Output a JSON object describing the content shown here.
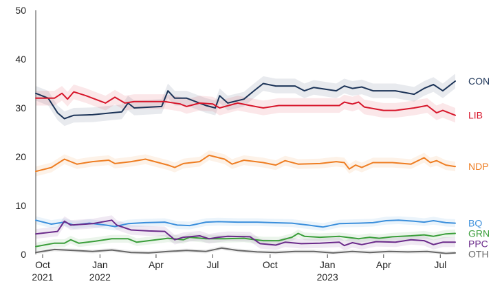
{
  "chart_data": {
    "type": "line",
    "ylim": [
      0,
      50
    ],
    "yticks": [
      0,
      10,
      20,
      30,
      40,
      50
    ],
    "xlim": [
      "2021-09-20",
      "2023-08-05"
    ],
    "xticks": [
      {
        "date": "2021-10-01",
        "label": "Oct",
        "year": "2021"
      },
      {
        "date": "2022-01-01",
        "label": "Jan",
        "year": "2022"
      },
      {
        "date": "2022-04-01",
        "label": "Apr",
        "year": ""
      },
      {
        "date": "2022-07-01",
        "label": "Jul",
        "year": ""
      },
      {
        "date": "2022-10-01",
        "label": "Oct",
        "year": ""
      },
      {
        "date": "2023-01-01",
        "label": "Jan",
        "year": "2023"
      },
      {
        "date": "2023-04-01",
        "label": "Apr",
        "year": ""
      },
      {
        "date": "2023-07-01",
        "label": "Jul",
        "year": ""
      }
    ],
    "series": [
      {
        "name": "CON",
        "color": "#1b3357",
        "band": 1.5,
        "points": [
          [
            "2021-09-20",
            33.0
          ],
          [
            "2021-10-10",
            32.0
          ],
          [
            "2021-10-25",
            29.0
          ],
          [
            "2021-11-05",
            27.8
          ],
          [
            "2021-11-20",
            28.5
          ],
          [
            "2021-12-20",
            28.6
          ],
          [
            "2022-01-20",
            29.0
          ],
          [
            "2022-02-05",
            29.2
          ],
          [
            "2022-02-15",
            31.0
          ],
          [
            "2022-02-25",
            30.0
          ],
          [
            "2022-04-10",
            30.3
          ],
          [
            "2022-04-20",
            33.5
          ],
          [
            "2022-05-01",
            32.0
          ],
          [
            "2022-05-20",
            32.0
          ],
          [
            "2022-06-20",
            30.5
          ],
          [
            "2022-07-05",
            30.0
          ],
          [
            "2022-07-12",
            32.5
          ],
          [
            "2022-07-25",
            31.0
          ],
          [
            "2022-08-20",
            31.8
          ],
          [
            "2022-09-05",
            33.5
          ],
          [
            "2022-09-20",
            35.0
          ],
          [
            "2022-10-10",
            34.5
          ],
          [
            "2022-11-10",
            34.5
          ],
          [
            "2022-11-25",
            33.5
          ],
          [
            "2022-12-10",
            34.2
          ],
          [
            "2023-01-15",
            33.5
          ],
          [
            "2023-01-28",
            34.5
          ],
          [
            "2023-02-10",
            34.0
          ],
          [
            "2023-02-25",
            34.3
          ],
          [
            "2023-03-15",
            33.5
          ],
          [
            "2023-04-20",
            33.5
          ],
          [
            "2023-05-20",
            32.8
          ],
          [
            "2023-06-05",
            34.0
          ],
          [
            "2023-06-20",
            34.8
          ],
          [
            "2023-07-05",
            33.5
          ],
          [
            "2023-07-25",
            35.5
          ]
        ]
      },
      {
        "name": "LIB",
        "color": "#d7162b",
        "band": 1.5,
        "points": [
          [
            "2021-09-20",
            32.0
          ],
          [
            "2021-10-20",
            32.0
          ],
          [
            "2021-11-01",
            33.0
          ],
          [
            "2021-11-10",
            31.8
          ],
          [
            "2021-11-20",
            33.3
          ],
          [
            "2021-12-10",
            32.5
          ],
          [
            "2022-01-10",
            31.0
          ],
          [
            "2022-01-25",
            32.2
          ],
          [
            "2022-02-10",
            31.0
          ],
          [
            "2022-02-25",
            31.3
          ],
          [
            "2022-04-15",
            31.3
          ],
          [
            "2022-05-10",
            30.8
          ],
          [
            "2022-05-20",
            30.3
          ],
          [
            "2022-06-10",
            31.0
          ],
          [
            "2022-07-01",
            30.8
          ],
          [
            "2022-07-12",
            30.0
          ],
          [
            "2022-08-10",
            31.0
          ],
          [
            "2022-08-30",
            30.5
          ],
          [
            "2022-09-20",
            30.0
          ],
          [
            "2022-10-15",
            30.5
          ],
          [
            "2022-11-01",
            30.5
          ],
          [
            "2023-01-20",
            30.5
          ],
          [
            "2023-01-28",
            31.2
          ],
          [
            "2023-02-10",
            30.8
          ],
          [
            "2023-02-20",
            31.2
          ],
          [
            "2023-03-01",
            30.2
          ],
          [
            "2023-04-01",
            29.5
          ],
          [
            "2023-04-20",
            29.5
          ],
          [
            "2023-05-20",
            30.0
          ],
          [
            "2023-06-10",
            30.5
          ],
          [
            "2023-06-25",
            29.0
          ],
          [
            "2023-07-05",
            29.5
          ],
          [
            "2023-07-25",
            28.5
          ]
        ]
      },
      {
        "name": "NDP",
        "color": "#ee7d22",
        "band": 1.0,
        "points": [
          [
            "2021-09-20",
            17.0
          ],
          [
            "2021-10-15",
            17.8
          ],
          [
            "2021-11-05",
            19.5
          ],
          [
            "2021-11-25",
            18.5
          ],
          [
            "2021-12-20",
            19.0
          ],
          [
            "2022-01-15",
            19.3
          ],
          [
            "2022-01-25",
            18.6
          ],
          [
            "2022-02-20",
            19.0
          ],
          [
            "2022-03-15",
            19.5
          ],
          [
            "2022-04-20",
            18.3
          ],
          [
            "2022-05-01",
            17.8
          ],
          [
            "2022-05-15",
            18.6
          ],
          [
            "2022-06-10",
            19.0
          ],
          [
            "2022-06-25",
            20.3
          ],
          [
            "2022-07-20",
            19.5
          ],
          [
            "2022-08-01",
            18.5
          ],
          [
            "2022-08-20",
            19.3
          ],
          [
            "2022-09-20",
            18.8
          ],
          [
            "2022-10-10",
            18.3
          ],
          [
            "2022-10-25",
            19.2
          ],
          [
            "2022-11-15",
            18.5
          ],
          [
            "2022-12-20",
            18.6
          ],
          [
            "2023-01-15",
            19.0
          ],
          [
            "2023-01-28",
            18.8
          ],
          [
            "2023-02-05",
            17.5
          ],
          [
            "2023-02-15",
            18.3
          ],
          [
            "2023-02-25",
            17.8
          ],
          [
            "2023-03-15",
            18.8
          ],
          [
            "2023-04-15",
            18.8
          ],
          [
            "2023-05-15",
            18.5
          ],
          [
            "2023-06-05",
            19.8
          ],
          [
            "2023-06-15",
            18.8
          ],
          [
            "2023-06-25",
            19.2
          ],
          [
            "2023-07-10",
            18.3
          ],
          [
            "2023-07-25",
            18.0
          ]
        ]
      },
      {
        "name": "BQ",
        "color": "#3b8fdc",
        "band": 0.8,
        "points": [
          [
            "2021-09-20",
            7.0
          ],
          [
            "2021-10-15",
            6.2
          ],
          [
            "2021-11-05",
            6.6
          ],
          [
            "2021-11-20",
            6.0
          ],
          [
            "2021-12-15",
            6.4
          ],
          [
            "2022-01-10",
            6.0
          ],
          [
            "2022-01-25",
            5.7
          ],
          [
            "2022-02-15",
            6.3
          ],
          [
            "2022-03-15",
            6.5
          ],
          [
            "2022-04-15",
            6.6
          ],
          [
            "2022-05-05",
            6.0
          ],
          [
            "2022-05-25",
            5.9
          ],
          [
            "2022-06-20",
            6.6
          ],
          [
            "2022-07-10",
            6.7
          ],
          [
            "2022-08-10",
            6.6
          ],
          [
            "2022-09-10",
            6.6
          ],
          [
            "2022-10-05",
            6.5
          ],
          [
            "2022-11-05",
            6.4
          ],
          [
            "2022-12-01",
            6.0
          ],
          [
            "2022-12-25",
            5.6
          ],
          [
            "2023-01-20",
            6.3
          ],
          [
            "2023-02-20",
            6.4
          ],
          [
            "2023-03-15",
            6.5
          ],
          [
            "2023-04-05",
            6.9
          ],
          [
            "2023-04-25",
            7.0
          ],
          [
            "2023-05-20",
            6.8
          ],
          [
            "2023-06-05",
            6.6
          ],
          [
            "2023-06-20",
            6.9
          ],
          [
            "2023-07-10",
            6.5
          ],
          [
            "2023-07-25",
            6.4
          ]
        ]
      },
      {
        "name": "GRN",
        "color": "#3a9e3a",
        "band": 0.8,
        "points": [
          [
            "2021-09-20",
            1.6
          ],
          [
            "2021-10-20",
            2.3
          ],
          [
            "2021-11-05",
            2.3
          ],
          [
            "2021-11-15",
            3.0
          ],
          [
            "2021-11-28",
            2.3
          ],
          [
            "2021-12-25",
            2.7
          ],
          [
            "2022-01-20",
            3.2
          ],
          [
            "2022-02-15",
            3.2
          ],
          [
            "2022-03-01",
            2.5
          ],
          [
            "2022-03-20",
            2.8
          ],
          [
            "2022-04-20",
            3.3
          ],
          [
            "2022-05-15",
            3.0
          ],
          [
            "2022-05-25",
            3.5
          ],
          [
            "2022-06-20",
            3.2
          ],
          [
            "2022-07-20",
            3.2
          ],
          [
            "2022-08-20",
            3.3
          ],
          [
            "2022-09-20",
            2.8
          ],
          [
            "2022-10-15",
            2.8
          ],
          [
            "2022-11-05",
            3.5
          ],
          [
            "2022-11-15",
            4.3
          ],
          [
            "2022-11-25",
            3.7
          ],
          [
            "2022-12-20",
            3.5
          ],
          [
            "2023-01-20",
            3.7
          ],
          [
            "2023-02-20",
            3.2
          ],
          [
            "2023-03-10",
            3.5
          ],
          [
            "2023-03-25",
            3.3
          ],
          [
            "2023-04-15",
            3.6
          ],
          [
            "2023-05-15",
            3.8
          ],
          [
            "2023-06-05",
            4.0
          ],
          [
            "2023-06-20",
            3.7
          ],
          [
            "2023-07-10",
            4.2
          ],
          [
            "2023-07-25",
            4.3
          ]
        ]
      },
      {
        "name": "PPC",
        "color": "#6a2a8a",
        "band": 1.0,
        "points": [
          [
            "2021-09-20",
            4.2
          ],
          [
            "2021-10-25",
            4.7
          ],
          [
            "2021-11-05",
            6.8
          ],
          [
            "2021-11-15",
            6.0
          ],
          [
            "2021-12-20",
            6.3
          ],
          [
            "2022-01-20",
            7.0
          ],
          [
            "2022-01-28",
            6.0
          ],
          [
            "2022-02-20",
            5.0
          ],
          [
            "2022-03-20",
            4.8
          ],
          [
            "2022-04-15",
            4.7
          ],
          [
            "2022-05-01",
            3.0
          ],
          [
            "2022-05-15",
            3.5
          ],
          [
            "2022-06-10",
            3.8
          ],
          [
            "2022-06-25",
            3.2
          ],
          [
            "2022-07-10",
            3.5
          ],
          [
            "2022-07-25",
            3.7
          ],
          [
            "2022-08-30",
            3.6
          ],
          [
            "2022-09-15",
            2.2
          ],
          [
            "2022-10-10",
            1.9
          ],
          [
            "2022-10-25",
            2.5
          ],
          [
            "2022-11-20",
            2.2
          ],
          [
            "2022-12-20",
            2.3
          ],
          [
            "2023-01-20",
            2.5
          ],
          [
            "2023-01-28",
            1.8
          ],
          [
            "2023-02-10",
            2.4
          ],
          [
            "2023-02-25",
            2.0
          ],
          [
            "2023-03-20",
            2.6
          ],
          [
            "2023-04-20",
            2.5
          ],
          [
            "2023-05-15",
            3.0
          ],
          [
            "2023-06-05",
            2.8
          ],
          [
            "2023-06-20",
            2.0
          ],
          [
            "2023-07-05",
            2.5
          ],
          [
            "2023-07-25",
            2.5
          ]
        ]
      },
      {
        "name": "OTH",
        "color": "#666666",
        "band": 0.4,
        "points": [
          [
            "2021-09-20",
            0.4
          ],
          [
            "2021-10-20",
            1.0
          ],
          [
            "2021-11-20",
            0.8
          ],
          [
            "2021-12-20",
            0.6
          ],
          [
            "2022-01-20",
            0.9
          ],
          [
            "2022-02-20",
            0.4
          ],
          [
            "2022-03-20",
            0.3
          ],
          [
            "2022-04-20",
            0.6
          ],
          [
            "2022-05-20",
            0.8
          ],
          [
            "2022-06-20",
            0.6
          ],
          [
            "2022-07-15",
            1.3
          ],
          [
            "2022-08-10",
            0.8
          ],
          [
            "2022-09-10",
            0.5
          ],
          [
            "2022-10-10",
            0.4
          ],
          [
            "2022-11-10",
            0.6
          ],
          [
            "2022-12-10",
            0.6
          ],
          [
            "2023-01-10",
            0.3
          ],
          [
            "2023-02-10",
            0.6
          ],
          [
            "2023-03-10",
            0.4
          ],
          [
            "2023-04-10",
            0.6
          ],
          [
            "2023-05-10",
            0.5
          ],
          [
            "2023-06-10",
            0.6
          ],
          [
            "2023-07-10",
            0.2
          ],
          [
            "2023-07-25",
            0.3
          ]
        ]
      }
    ]
  }
}
